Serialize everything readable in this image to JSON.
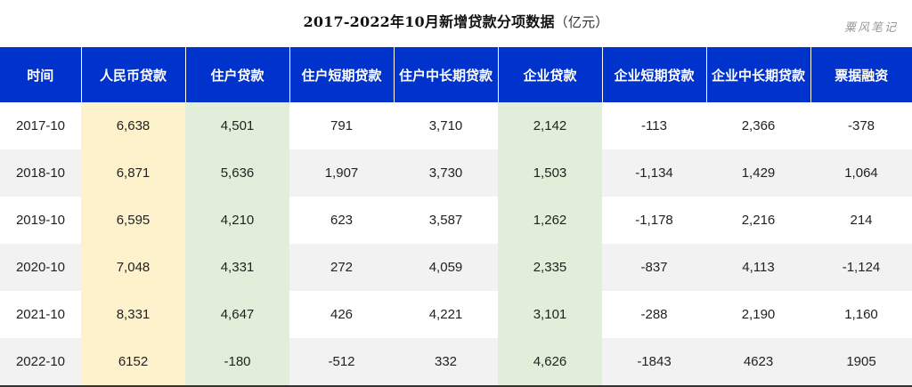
{
  "title": "2017-2022年10月新增贷款分项数据",
  "unit": "（亿元）",
  "watermark": "粟风笔记",
  "table": {
    "headers": [
      "时间",
      "人民币贷款",
      "住户贷款",
      "住户短期贷款",
      "住户中长期贷款",
      "企业贷款",
      "企业短期贷款",
      "企业中长期贷款",
      "票据融资"
    ],
    "rows": [
      [
        "2017-10",
        "6,638",
        "4,501",
        "791",
        "3,710",
        "2,142",
        "-113",
        "2,366",
        "-378"
      ],
      [
        "2018-10",
        "6,871",
        "5,636",
        "1,907",
        "3,730",
        "1,503",
        "-1,134",
        "1,429",
        "1,064"
      ],
      [
        "2019-10",
        "6,595",
        "4,210",
        "623",
        "3,587",
        "1,262",
        "-1,178",
        "2,216",
        "214"
      ],
      [
        "2020-10",
        "7,048",
        "4,331",
        "272",
        "4,059",
        "2,335",
        "-837",
        "4,113",
        "-1,124"
      ],
      [
        "2021-10",
        "8,331",
        "4,647",
        "426",
        "4,221",
        "3,101",
        "-288",
        "2,190",
        "1,160"
      ],
      [
        "2022-10",
        "6152",
        "-180",
        "-512",
        "332",
        "4,626",
        "-1843",
        "4623",
        "1905"
      ]
    ]
  },
  "colors": {
    "header_bg": "#0033cc",
    "rmb_column": "#fdf2cc",
    "household_column": "#e1efda",
    "enterprise_column": "#e1efda",
    "zebra": "#f2f2f2"
  }
}
